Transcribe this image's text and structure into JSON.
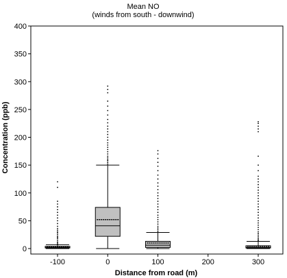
{
  "chart_data": {
    "type": "box",
    "title": "Mean NO",
    "subtitle": "(winds from south - downwind)",
    "xlabel": "Distance from road (m)",
    "ylabel": "Concentration (ppb)",
    "xlim": [
      -150,
      350
    ],
    "ylim": [
      0,
      400
    ],
    "x_ticks": [
      -100,
      0,
      100,
      200,
      300
    ],
    "y_ticks": [
      0,
      50,
      100,
      150,
      200,
      250,
      300,
      350,
      400
    ],
    "grid": false,
    "box_fill": "#c0c0c0",
    "boxes": [
      {
        "x": -100,
        "whisker_low": 0,
        "q1": 1,
        "median": 2,
        "mean": 3,
        "q3": 4,
        "whisker_high": 7,
        "outliers": [
          8,
          10,
          12,
          15,
          18,
          20,
          22,
          25,
          28,
          30,
          33,
          36,
          40,
          45,
          50,
          55,
          60,
          65,
          70,
          75,
          80,
          85,
          110,
          120
        ]
      },
      {
        "x": 0,
        "whisker_low": 0,
        "q1": 22,
        "median": 41,
        "mean": 52,
        "q3": 74,
        "whisker_high": 150,
        "outliers": [
          152,
          155,
          158,
          160,
          163,
          166,
          170,
          174,
          178,
          182,
          186,
          190,
          195,
          200,
          205,
          210,
          215,
          220,
          226,
          232,
          240,
          248,
          256,
          265,
          280,
          286,
          292
        ]
      },
      {
        "x": 100,
        "whisker_low": 0,
        "q1": 2,
        "median": 6,
        "mean": 10,
        "q3": 13,
        "whisker_high": 29,
        "outliers": [
          31,
          34,
          37,
          40,
          44,
          48,
          52,
          56,
          60,
          65,
          70,
          75,
          80,
          85,
          90,
          95,
          100,
          106,
          112,
          118,
          125,
          132,
          140,
          148,
          155,
          162,
          170,
          176
        ]
      },
      {
        "x": 300,
        "whisker_low": 0,
        "q1": 1,
        "median": 2,
        "mean": 4,
        "q3": 5,
        "whisker_high": 13,
        "outliers": [
          14,
          16,
          18,
          21,
          24,
          27,
          30,
          34,
          38,
          42,
          46,
          50,
          55,
          60,
          65,
          70,
          75,
          80,
          85,
          90,
          95,
          100,
          105,
          110,
          115,
          120,
          125,
          130,
          140,
          150,
          166,
          210,
          215,
          220,
          225,
          228
        ]
      }
    ]
  }
}
